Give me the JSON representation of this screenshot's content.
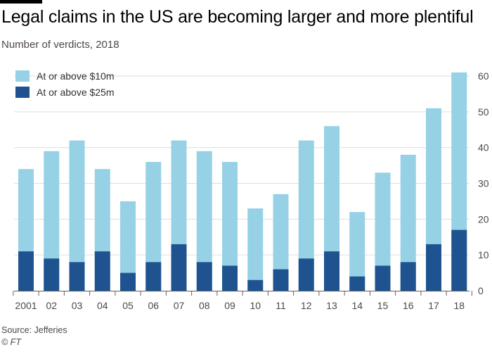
{
  "header": {
    "title": "Legal claims in the US are becoming larger and more plentiful",
    "subtitle": "Number of verdicts, 2018"
  },
  "footer": {
    "source": "Source: Jefferies",
    "copyright": "© FT"
  },
  "colors": {
    "light": "#96d1e6",
    "dark": "#1f538f",
    "grid": "#e0dedc",
    "axis": "#66605c"
  },
  "chart_data": {
    "type": "bar",
    "title": "Legal claims in the US are becoming larger and more plentiful",
    "subtitle": "Number of verdicts, 2018",
    "xlabel": "",
    "ylabel": "",
    "ylim": [
      0,
      60
    ],
    "yticks": [
      0,
      10,
      20,
      30,
      40,
      50,
      60
    ],
    "categories": [
      "2001",
      "02",
      "03",
      "04",
      "05",
      "06",
      "07",
      "08",
      "09",
      "10",
      "11",
      "12",
      "13",
      "14",
      "15",
      "16",
      "17",
      "18"
    ],
    "legend_position": "top-left",
    "series": [
      {
        "name": "At or above $10m",
        "color": "#96d1e6",
        "values": [
          34,
          39,
          42,
          34,
          25,
          36,
          42,
          39,
          36,
          23,
          27,
          42,
          46,
          22,
          33,
          38,
          51,
          61
        ]
      },
      {
        "name": "At or above $25m",
        "color": "#1f538f",
        "values": [
          11,
          9,
          8,
          11,
          5,
          8,
          13,
          8,
          7,
          3,
          6,
          9,
          11,
          4,
          7,
          8,
          13,
          17
        ]
      }
    ]
  }
}
